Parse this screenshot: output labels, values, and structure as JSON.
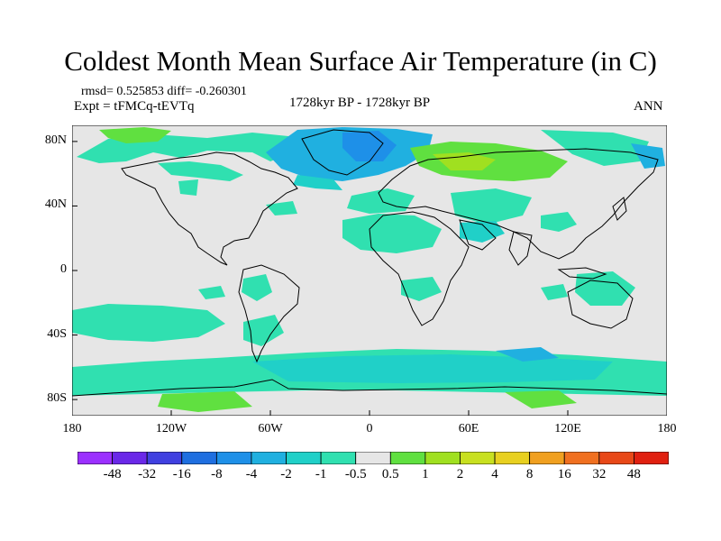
{
  "title": "Coldest Month Mean Surface Air Temperature (in C)",
  "stats": "rmsd= 0.525853 diff= -0.260301",
  "expt": "Expt = tFMCq-tEVTq",
  "period": "1728kyr BP - 1728kyr BP",
  "season": "ANN",
  "axes": {
    "y_ticks": [
      "80N",
      "40N",
      "0",
      "40S",
      "80S"
    ],
    "y_values": [
      80,
      40,
      0,
      -40,
      -80
    ],
    "x_ticks": [
      "180",
      "120W",
      "60W",
      "0",
      "60E",
      "120E",
      "180"
    ],
    "x_values": [
      -180,
      -120,
      -60,
      0,
      60,
      120,
      180
    ],
    "lon_range": [
      -180,
      180
    ],
    "lat_range": [
      -90,
      90
    ]
  },
  "colorbar": {
    "labels": [
      "-48",
      "-32",
      "-16",
      "-8",
      "-4",
      "-2",
      "-1",
      "-0.5",
      "0.5",
      "1",
      "2",
      "4",
      "8",
      "16",
      "32",
      "48"
    ],
    "colors": [
      "#9b30ff",
      "#6a28e8",
      "#4040e0",
      "#1f6fe0",
      "#1e90e8",
      "#20b0e0",
      "#20d0c8",
      "#30e0b0",
      "#e6e6e6",
      "#60e040",
      "#a0e020",
      "#c8e020",
      "#e8d020",
      "#f0a020",
      "#f07020",
      "#e84818",
      "#e02010"
    ]
  },
  "legend_colors": {
    "background": "#e6e6e6",
    "cool_light": "#30e0b0",
    "cool_mid": "#20d0c8",
    "cool_strong": "#20b0e0",
    "cool_deep": "#1e90e8",
    "warm_light": "#60e040",
    "warm_mid": "#a0e020"
  }
}
